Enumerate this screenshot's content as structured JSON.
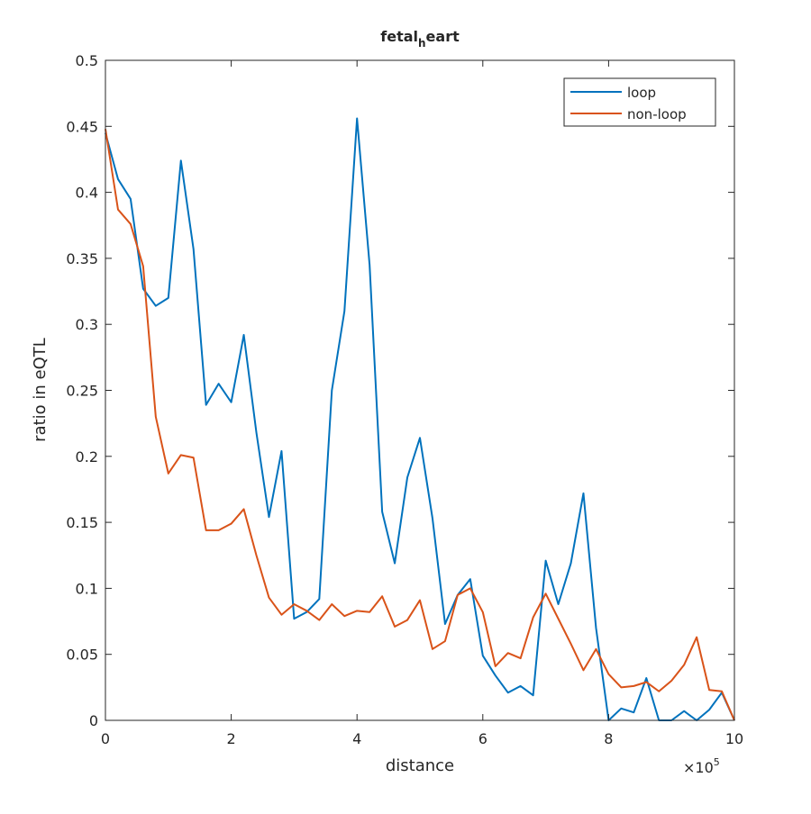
{
  "chart_data": {
    "type": "line",
    "title_main": "fetal",
    "title_sub": "h",
    "title_rest": "eart",
    "xlabel": "distance",
    "ylabel": "ratio in eQTL",
    "x_multiplier_base": "×10",
    "x_multiplier_exp": "5",
    "xlim": [
      0,
      10
    ],
    "ylim": [
      0,
      0.5
    ],
    "xticks": [
      "0",
      "2",
      "4",
      "6",
      "8",
      "10"
    ],
    "yticks": [
      "0",
      "0.05",
      "0.1",
      "0.15",
      "0.2",
      "0.25",
      "0.3",
      "0.35",
      "0.4",
      "0.45",
      "0.5"
    ],
    "legend_position": "top-right",
    "x": [
      0,
      0.2,
      0.4,
      0.6,
      0.8,
      1.0,
      1.2,
      1.4,
      1.6,
      1.8,
      2.0,
      2.2,
      2.4,
      2.6,
      2.8,
      3.0,
      3.2,
      3.4,
      3.6,
      3.8,
      4.0,
      4.2,
      4.4,
      4.6,
      4.8,
      5.0,
      5.2,
      5.4,
      5.6,
      5.8,
      6.0,
      6.2,
      6.4,
      6.6,
      6.8,
      7.0,
      7.2,
      7.4,
      7.6,
      7.8,
      8.0,
      8.2,
      8.4,
      8.6,
      8.8,
      9.0,
      9.2,
      9.4,
      9.6,
      9.8,
      10.0
    ],
    "series": [
      {
        "name": "loop",
        "color": "#0072BD",
        "values": [
          0.445,
          0.41,
          0.395,
          0.327,
          0.314,
          0.32,
          0.424,
          0.357,
          0.239,
          0.255,
          0.241,
          0.292,
          0.218,
          0.154,
          0.204,
          0.077,
          0.082,
          0.092,
          0.25,
          0.31,
          0.456,
          0.345,
          0.158,
          0.119,
          0.184,
          0.214,
          0.153,
          0.073,
          0.095,
          0.107,
          0.049,
          0.034,
          0.021,
          0.026,
          0.019,
          0.121,
          0.088,
          0.119,
          0.172,
          0.07,
          0.0,
          0.009,
          0.006,
          0.032,
          0.0,
          0.0,
          0.007,
          0.0,
          0.008,
          0.021,
          0.0
        ]
      },
      {
        "name": "non-loop",
        "color": "#D95319",
        "values": [
          0.448,
          0.387,
          0.376,
          0.344,
          0.23,
          0.187,
          0.201,
          0.199,
          0.144,
          0.144,
          0.149,
          0.16,
          0.125,
          0.093,
          0.08,
          0.088,
          0.083,
          0.076,
          0.088,
          0.079,
          0.083,
          0.082,
          0.094,
          0.071,
          0.076,
          0.091,
          0.054,
          0.06,
          0.095,
          0.1,
          0.082,
          0.041,
          0.051,
          0.047,
          0.078,
          0.096,
          0.077,
          0.058,
          0.038,
          0.054,
          0.035,
          0.025,
          0.026,
          0.029,
          0.022,
          0.03,
          0.042,
          0.063,
          0.023,
          0.022,
          0.0
        ]
      }
    ]
  }
}
